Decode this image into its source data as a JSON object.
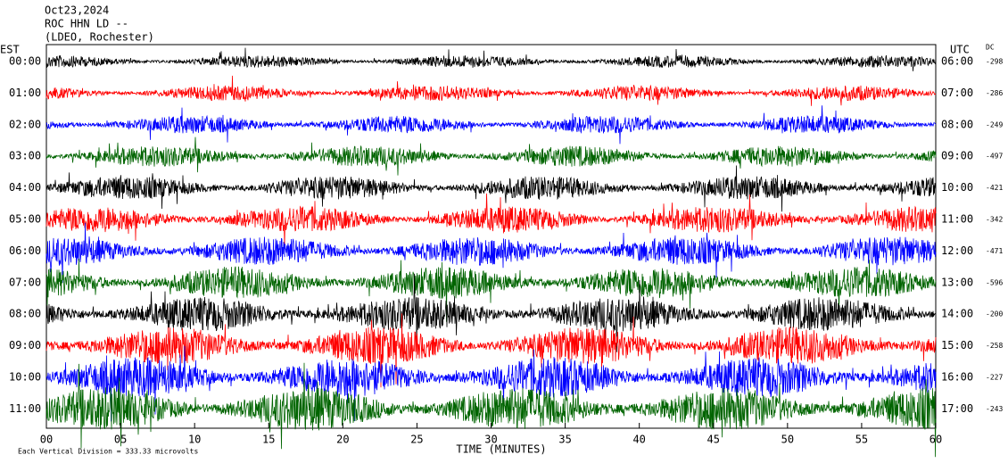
{
  "chart_data": {
    "type": "helicorder",
    "title_lines": [
      "Oct23,2024",
      "ROC HHN LD --",
      "(LDEO, Rochester)"
    ],
    "left_axis_label": "EST",
    "right_axis_label": "UTC",
    "dc_label": "DC",
    "rows": [
      {
        "est": "00:00",
        "utc": "06:00",
        "dc": -298,
        "color": "#000000"
      },
      {
        "est": "01:00",
        "utc": "07:00",
        "dc": -286,
        "color": "#ff0000"
      },
      {
        "est": "02:00",
        "utc": "08:00",
        "dc": -249,
        "color": "#0000ff"
      },
      {
        "est": "03:00",
        "utc": "09:00",
        "dc": -497,
        "color": "#006400"
      },
      {
        "est": "04:00",
        "utc": "10:00",
        "dc": -421,
        "color": "#000000"
      },
      {
        "est": "05:00",
        "utc": "11:00",
        "dc": -342,
        "color": "#ff0000"
      },
      {
        "est": "06:00",
        "utc": "12:00",
        "dc": -471,
        "color": "#0000ff"
      },
      {
        "est": "07:00",
        "utc": "13:00",
        "dc": -596,
        "color": "#006400"
      },
      {
        "est": "08:00",
        "utc": "14:00",
        "dc": -200,
        "color": "#000000"
      },
      {
        "est": "09:00",
        "utc": "15:00",
        "dc": -258,
        "color": "#ff0000"
      },
      {
        "est": "10:00",
        "utc": "16:00",
        "dc": -227,
        "color": "#0000ff"
      },
      {
        "est": "11:00",
        "utc": "17:00",
        "dc": -243,
        "color": "#006400"
      }
    ],
    "xlim": [
      0,
      60
    ],
    "xticks": [
      {
        "value": 0,
        "label": "00"
      },
      {
        "value": 5,
        "label": "05"
      },
      10,
      15,
      20,
      25,
      30,
      35,
      40,
      45,
      50,
      55,
      60
    ],
    "xlabel": "TIME (MINUTES)",
    "footer": "Each Vertical Division =  333.33 microvolts"
  }
}
